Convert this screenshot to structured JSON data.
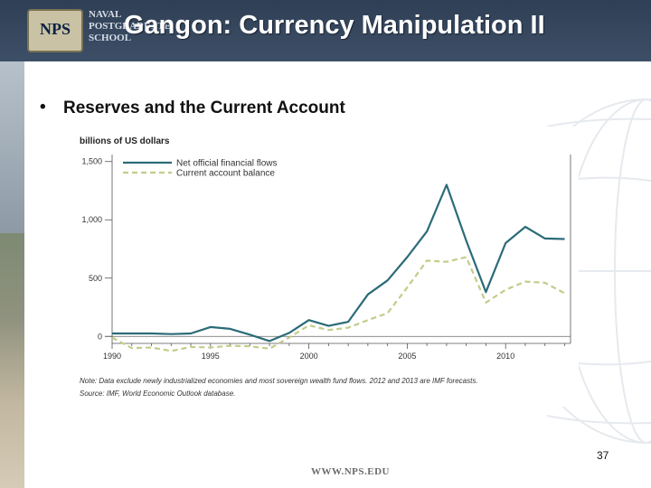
{
  "header": {
    "title": "Gangon: Currency Manipulation II",
    "logo_seal": "NPS",
    "logo_words": [
      "NAVAL",
      "POSTGRADUATE",
      "SCHOOL"
    ]
  },
  "bullet": {
    "symbol": "•",
    "text": "Reserves and the Current Account"
  },
  "chart_data": {
    "type": "line",
    "unit_label": "billions of US dollars",
    "ylim": [
      -60,
      1560
    ],
    "xlim": [
      1990,
      2013.3
    ],
    "y_ticks": [
      "1,500",
      "1,000",
      "500",
      "0"
    ],
    "y_tick_values": [
      1500,
      1000,
      500,
      0
    ],
    "x_ticks": [
      "1990",
      "1995",
      "2000",
      "2005",
      "2010"
    ],
    "x_tick_values": [
      1990,
      1995,
      2000,
      2005,
      2010
    ],
    "grid": false,
    "legend_position": "top-left",
    "series": [
      {
        "name": "Net official financial flows",
        "color": "#2b6b78",
        "dash": "none",
        "x": [
          1990,
          1991,
          1992,
          1993,
          1994,
          1995,
          1996,
          1997,
          1998,
          1999,
          2000,
          2001,
          2002,
          2003,
          2004,
          2005,
          2006,
          2007,
          2008,
          2009,
          2010,
          2011,
          2012,
          2013
        ],
        "y": [
          25,
          25,
          25,
          20,
          25,
          80,
          65,
          15,
          -40,
          30,
          140,
          90,
          125,
          360,
          480,
          680,
          900,
          1300,
          820,
          380,
          800,
          940,
          840,
          835
        ]
      },
      {
        "name": "Current account balance",
        "color": "#c3cc8a",
        "dash": "6,4",
        "x": [
          1990,
          1991,
          1992,
          1993,
          1994,
          1995,
          1996,
          1997,
          1998,
          1999,
          2000,
          2001,
          2002,
          2003,
          2004,
          2005,
          2006,
          2007,
          2008,
          2009,
          2010,
          2011,
          2012,
          2013
        ],
        "y": [
          -10,
          -100,
          -95,
          -125,
          -90,
          -95,
          -80,
          -85,
          -105,
          -10,
          95,
          55,
          75,
          140,
          200,
          420,
          650,
          640,
          680,
          290,
          400,
          470,
          460,
          370
        ]
      }
    ],
    "note": "Note: Data exclude newly industrialized economies and most sovereign wealth fund flows. 2012 and 2013 are IMF forecasts.",
    "source": "Source: IMF, World Economic Outlook database."
  },
  "footer": {
    "page_number": "37",
    "url": "WWW.NPS.EDU"
  }
}
